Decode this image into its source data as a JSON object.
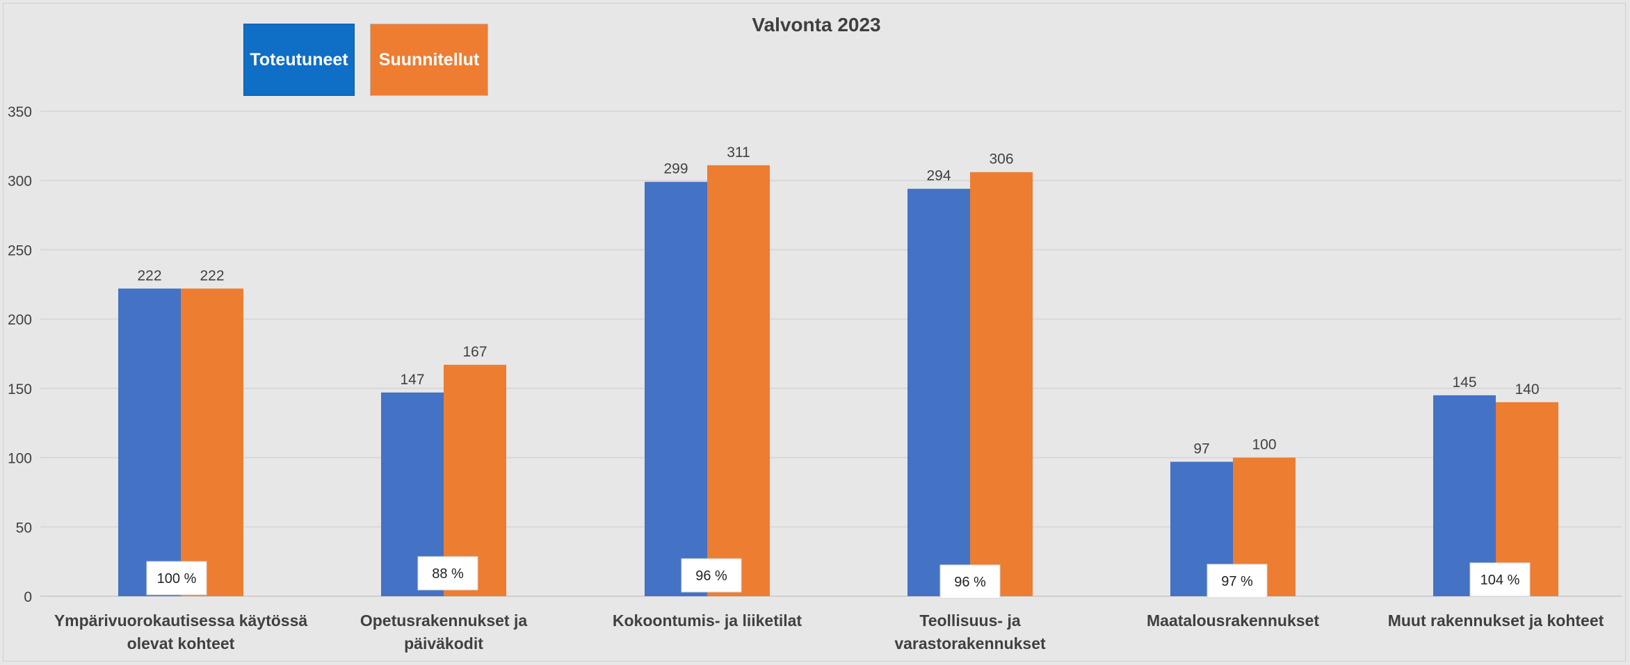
{
  "chart_data": {
    "type": "bar",
    "title": "Valvonta 2023",
    "xlabel": "",
    "ylabel": "",
    "ylim": [
      0,
      350
    ],
    "yticks": [
      0,
      50,
      100,
      150,
      200,
      250,
      300,
      350
    ],
    "grid": true,
    "legend_placement": "top-left",
    "categories": [
      [
        "Ympärivuorokautisessa käytössä",
        "olevat kohteet"
      ],
      [
        "Opetusrakennukset ja",
        "päiväkodit"
      ],
      [
        "Kokoontumis- ja liiketilat"
      ],
      [
        "Teollisuus- ja",
        "varastorakennukset"
      ],
      [
        "Maatalousrakennukset"
      ],
      [
        "Muut rakennukset ja kohteet"
      ]
    ],
    "series": [
      {
        "name": "Toteutuneet",
        "color": "#4472c4",
        "values": [
          222,
          147,
          299,
          294,
          97,
          145
        ]
      },
      {
        "name": "Suunnitellut",
        "color": "#ed7d31",
        "values": [
          222,
          167,
          311,
          306,
          100,
          140
        ]
      }
    ],
    "percent_labels": [
      "100 %",
      "88 %",
      "96 %",
      "96 %",
      "97 %",
      "104 %"
    ]
  },
  "colors": {
    "background": "#e7e7e7",
    "gridline": "#d4d4d4",
    "axis_text": "#404040"
  }
}
